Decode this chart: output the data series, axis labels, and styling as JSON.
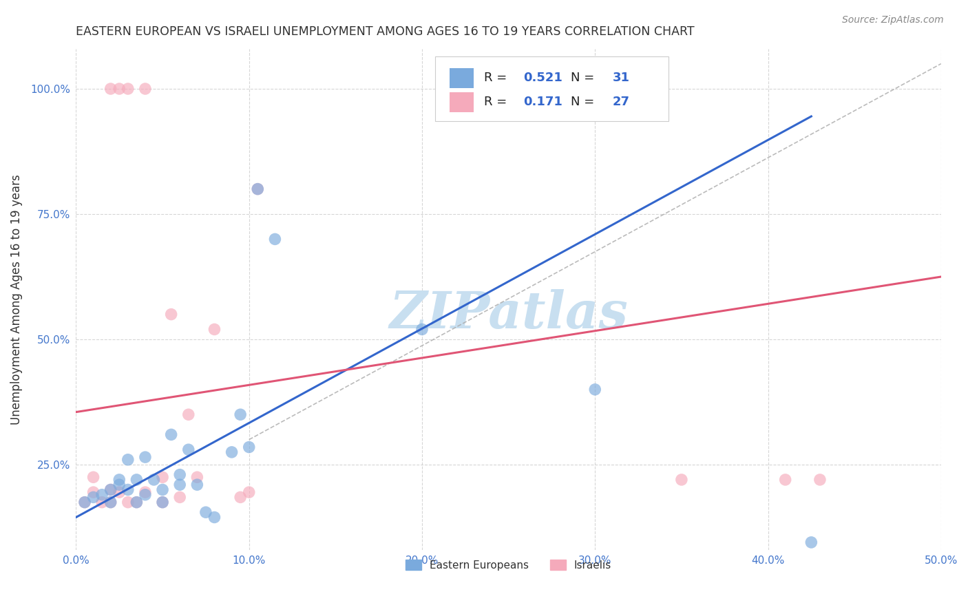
{
  "title": "EASTERN EUROPEAN VS ISRAELI UNEMPLOYMENT AMONG AGES 16 TO 19 YEARS CORRELATION CHART",
  "source": "Source: ZipAtlas.com",
  "ylabel": "Unemployment Among Ages 16 to 19 years",
  "xlim": [
    0.0,
    0.5
  ],
  "ylim": [
    0.08,
    1.08
  ],
  "xticks": [
    0.0,
    0.1,
    0.2,
    0.3,
    0.4,
    0.5
  ],
  "yticks": [
    0.25,
    0.5,
    0.75,
    1.0
  ],
  "xtick_labels": [
    "0.0%",
    "10.0%",
    "20.0%",
    "30.0%",
    "40.0%",
    "50.0%"
  ],
  "ytick_labels": [
    "25.0%",
    "50.0%",
    "75.0%",
    "100.0%"
  ],
  "background_color": "#ffffff",
  "grid_color": "#cccccc",
  "title_color": "#333333",
  "watermark_text": "ZIPatlas",
  "watermark_color": "#c8dff0",
  "blue_color": "#7aaadd",
  "pink_color": "#f5aabb",
  "blue_line_color": "#3366cc",
  "pink_line_color": "#e05575",
  "legend_R1": "0.521",
  "legend_N1": "31",
  "legend_R2": "0.171",
  "legend_N2": "27",
  "legend_label1": "Eastern Europeans",
  "legend_label2": "Israelis",
  "blue_scatter_x": [
    0.005,
    0.01,
    0.015,
    0.02,
    0.02,
    0.025,
    0.025,
    0.03,
    0.03,
    0.035,
    0.035,
    0.04,
    0.04,
    0.045,
    0.05,
    0.05,
    0.055,
    0.06,
    0.06,
    0.065,
    0.07,
    0.075,
    0.08,
    0.09,
    0.095,
    0.1,
    0.105,
    0.115,
    0.2,
    0.3,
    0.425
  ],
  "blue_scatter_y": [
    0.175,
    0.185,
    0.19,
    0.2,
    0.175,
    0.21,
    0.22,
    0.2,
    0.26,
    0.175,
    0.22,
    0.19,
    0.265,
    0.22,
    0.2,
    0.175,
    0.31,
    0.21,
    0.23,
    0.28,
    0.21,
    0.155,
    0.145,
    0.275,
    0.35,
    0.285,
    0.8,
    0.7,
    0.52,
    0.4,
    0.095
  ],
  "pink_scatter_x": [
    0.005,
    0.01,
    0.01,
    0.015,
    0.02,
    0.02,
    0.02,
    0.025,
    0.025,
    0.03,
    0.03,
    0.035,
    0.04,
    0.04,
    0.05,
    0.05,
    0.055,
    0.06,
    0.065,
    0.07,
    0.08,
    0.095,
    0.1,
    0.105,
    0.35,
    0.41,
    0.43
  ],
  "pink_scatter_y": [
    0.175,
    0.195,
    0.225,
    0.175,
    0.175,
    0.2,
    1.0,
    0.195,
    1.0,
    0.175,
    1.0,
    0.175,
    0.195,
    1.0,
    0.225,
    0.175,
    0.55,
    0.185,
    0.35,
    0.225,
    0.52,
    0.185,
    0.195,
    0.8,
    0.22,
    0.22,
    0.22
  ],
  "blue_line_x": [
    0.0,
    0.425
  ],
  "blue_line_y": [
    0.145,
    0.945
  ],
  "pink_line_x": [
    0.0,
    0.5
  ],
  "pink_line_y": [
    0.355,
    0.625
  ],
  "diag_line_x": [
    0.1,
    0.5
  ],
  "diag_line_y": [
    0.3,
    1.05
  ]
}
